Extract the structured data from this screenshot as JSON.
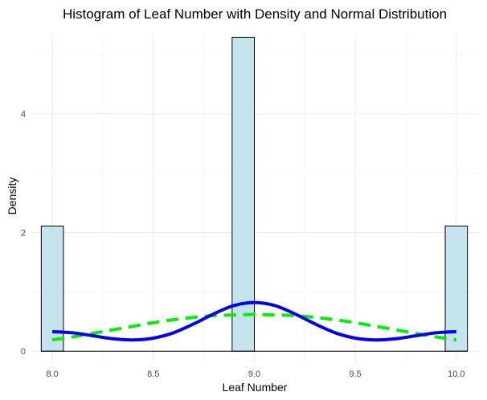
{
  "chart_data": {
    "type": "bar",
    "title": "Histogram of Leaf Number with Density and Normal Distribution",
    "xlabel": "Leaf Number",
    "ylabel": "Density",
    "xlim": [
      7.9,
      10.12
    ],
    "ylim": [
      -0.2,
      5.35
    ],
    "x_ticks": [
      8.0,
      8.5,
      9.0,
      9.5,
      10.0
    ],
    "x_tick_labels": [
      "8.0",
      "8.5",
      "9.0",
      "9.5",
      "10.0"
    ],
    "y_ticks": [
      0,
      2,
      4
    ],
    "y_tick_labels": [
      "0",
      "2",
      "4"
    ],
    "grid": true,
    "legend": "none",
    "bars": [
      {
        "x0": 7.945,
        "x1": 8.055,
        "density": 2.11
      },
      {
        "x0": 8.89,
        "x1": 9.0,
        "density": 5.29
      },
      {
        "x0": 9.945,
        "x1": 10.055,
        "density": 2.11
      }
    ],
    "series": [
      {
        "kind": "density",
        "line_style": "solid",
        "x": [
          8.0,
          8.1,
          8.2,
          8.3,
          8.4,
          8.5,
          8.6,
          8.7,
          8.8,
          8.9,
          9.0,
          9.1,
          9.2,
          9.3,
          9.4,
          9.5,
          9.6,
          9.7,
          9.8,
          9.9,
          10.0
        ],
        "y": [
          0.33,
          0.31,
          0.26,
          0.21,
          0.19,
          0.22,
          0.31,
          0.46,
          0.63,
          0.77,
          0.82,
          0.77,
          0.63,
          0.46,
          0.31,
          0.22,
          0.19,
          0.21,
          0.26,
          0.31,
          0.33
        ]
      },
      {
        "kind": "normal",
        "line_style": "dashed",
        "x": [
          8.0,
          8.1,
          8.2,
          8.3,
          8.4,
          8.5,
          8.6,
          8.7,
          8.8,
          8.9,
          9.0,
          9.1,
          9.2,
          9.3,
          9.4,
          9.5,
          9.6,
          9.7,
          9.8,
          9.9,
          10.0
        ],
        "y": [
          0.19,
          0.24,
          0.3,
          0.36,
          0.42,
          0.48,
          0.53,
          0.57,
          0.6,
          0.61,
          0.62,
          0.61,
          0.6,
          0.57,
          0.53,
          0.48,
          0.42,
          0.36,
          0.3,
          0.24,
          0.19
        ]
      }
    ],
    "colors": {
      "bar_fill": "#c5e3ed",
      "bar_stroke": "#000000",
      "density_line": "#0000ee",
      "normal_line": "#00ee00"
    }
  }
}
